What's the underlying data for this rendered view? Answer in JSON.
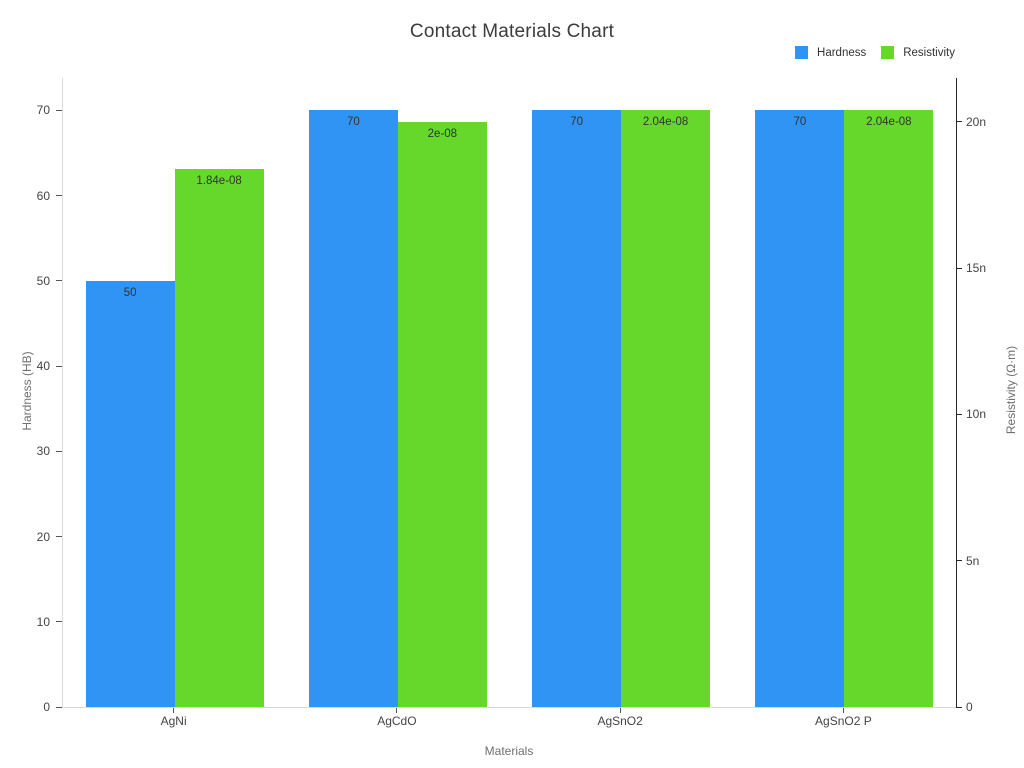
{
  "title": "Contact Materials Chart",
  "legend": {
    "items": [
      {
        "name": "hardness-swatch",
        "label": "Hardness",
        "color": "#3094F4"
      },
      {
        "name": "resistivity-swatch",
        "label": "Resistivity",
        "color": "#65D82B"
      }
    ]
  },
  "chart_data": {
    "type": "bar",
    "title": "Contact Materials Chart",
    "xlabel": "Materials",
    "grid": false,
    "legend_position": "top-right",
    "categories": [
      "AgNi",
      "AgCdO",
      "AgSnO2",
      "AgSnO2 P"
    ],
    "series": [
      {
        "name": "Hardness",
        "axis": "left",
        "color": "#3094F4",
        "values": [
          50,
          70,
          70,
          70
        ],
        "value_labels": [
          "50",
          "70",
          "70",
          "70"
        ]
      },
      {
        "name": "Resistivity",
        "axis": "right",
        "color": "#65D82B",
        "values": [
          1.84e-08,
          2e-08,
          2.04e-08,
          2.04e-08
        ],
        "value_labels": [
          "1.84e-08",
          "2e-08",
          "2.04e-08",
          "2.04e-08"
        ]
      }
    ],
    "left_axis": {
      "label": "Hardness (HB)",
      "min": 0,
      "max": 73.8,
      "ticks": [
        {
          "value": 0,
          "label": "0"
        },
        {
          "value": 10,
          "label": "10"
        },
        {
          "value": 20,
          "label": "20"
        },
        {
          "value": 30,
          "label": "30"
        },
        {
          "value": 40,
          "label": "40"
        },
        {
          "value": 50,
          "label": "50"
        },
        {
          "value": 60,
          "label": "60"
        },
        {
          "value": 70,
          "label": "70"
        }
      ]
    },
    "right_axis": {
      "label": "Resistivity (Ω·m)",
      "min": 0,
      "max": 2.15e-08,
      "ticks": [
        {
          "value": 0,
          "label": "0"
        },
        {
          "value": 5e-09,
          "label": "5n"
        },
        {
          "value": 1e-08,
          "label": "10n"
        },
        {
          "value": 1.5e-08,
          "label": "15n"
        },
        {
          "value": 2e-08,
          "label": "20n"
        }
      ]
    }
  }
}
